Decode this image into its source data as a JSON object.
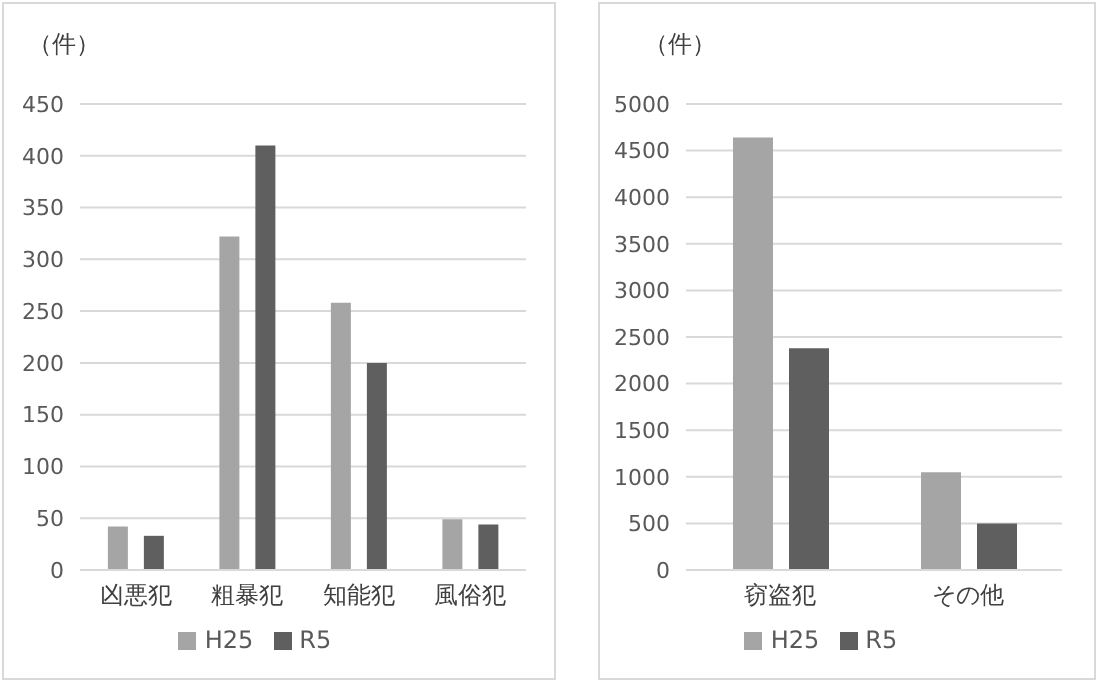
{
  "chart_data": [
    {
      "type": "bar",
      "ylabel": "（件）",
      "categories": [
        "凶悪犯",
        "粗暴犯",
        "知能犯",
        "風俗犯"
      ],
      "series": [
        {
          "name": "H25",
          "color": "#a5a5a5",
          "values": [
            42,
            322,
            258,
            49
          ]
        },
        {
          "name": "R5",
          "color": "#5f5f5f",
          "values": [
            33,
            410,
            200,
            44
          ]
        }
      ],
      "ylim": [
        0,
        450
      ],
      "yticks": [
        0,
        50,
        100,
        150,
        200,
        250,
        300,
        350,
        400,
        450
      ],
      "grid": "y",
      "legend": "bottom"
    },
    {
      "type": "bar",
      "ylabel": "（件）",
      "categories": [
        "窃盗犯",
        "その他"
      ],
      "series": [
        {
          "name": "H25",
          "color": "#a5a5a5",
          "values": [
            4640,
            1050
          ]
        },
        {
          "name": "R5",
          "color": "#5f5f5f",
          "values": [
            2380,
            500
          ]
        }
      ],
      "ylim": [
        0,
        5000
      ],
      "yticks": [
        0,
        500,
        1000,
        1500,
        2000,
        2500,
        3000,
        3500,
        4000,
        4500,
        5000
      ],
      "grid": "y",
      "legend": "bottom"
    }
  ]
}
